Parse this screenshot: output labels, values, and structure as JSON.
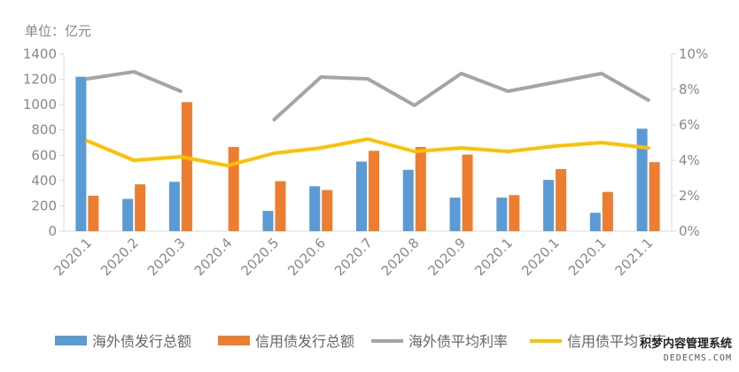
{
  "unit_label": "单位：亿元",
  "watermark": {
    "line1": "积梦内容管理系统",
    "line2": "DEDECMS.COM"
  },
  "chart_data": {
    "type": "bar",
    "categories": [
      "2020.1",
      "2020.2",
      "2020.3",
      "2020.4",
      "2020.5",
      "2020.6",
      "2020.7",
      "2020.8",
      "2020.9",
      "2020.1",
      "2020.1",
      "2020.1",
      "2021.1"
    ],
    "series": [
      {
        "name": "海外债发行总额",
        "type": "bar",
        "axis": "left",
        "color": "#5b9bd5",
        "values": [
          1220,
          255,
          390,
          null,
          160,
          355,
          550,
          485,
          265,
          265,
          405,
          145,
          810
        ]
      },
      {
        "name": "信用债发行总额",
        "type": "bar",
        "axis": "left",
        "color": "#ed7d31",
        "values": [
          280,
          370,
          1020,
          665,
          395,
          325,
          635,
          665,
          605,
          285,
          490,
          310,
          545
        ]
      },
      {
        "name": "海外债平均利率",
        "type": "line",
        "axis": "right",
        "color": "#a5a5a5",
        "values": [
          8.6,
          9.0,
          7.9,
          null,
          6.3,
          8.7,
          8.6,
          7.1,
          8.9,
          7.9,
          8.4,
          8.9,
          7.4
        ]
      },
      {
        "name": "信用债平均利率",
        "type": "line",
        "axis": "right",
        "color": "#ffc000",
        "values": [
          5.1,
          4.0,
          4.2,
          3.7,
          4.4,
          4.7,
          5.2,
          4.5,
          4.7,
          4.5,
          4.8,
          5.0,
          4.7
        ]
      }
    ],
    "y_left": {
      "min": 0,
      "max": 1400,
      "ticks": [
        "0",
        "200",
        "400",
        "600",
        "800",
        "1000",
        "1200",
        "1400"
      ]
    },
    "y_right": {
      "min": 0,
      "max": 10,
      "ticks": [
        "0%",
        "2%",
        "4%",
        "6%",
        "8%",
        "10%"
      ]
    },
    "grid": false,
    "legend_position": "bottom"
  }
}
